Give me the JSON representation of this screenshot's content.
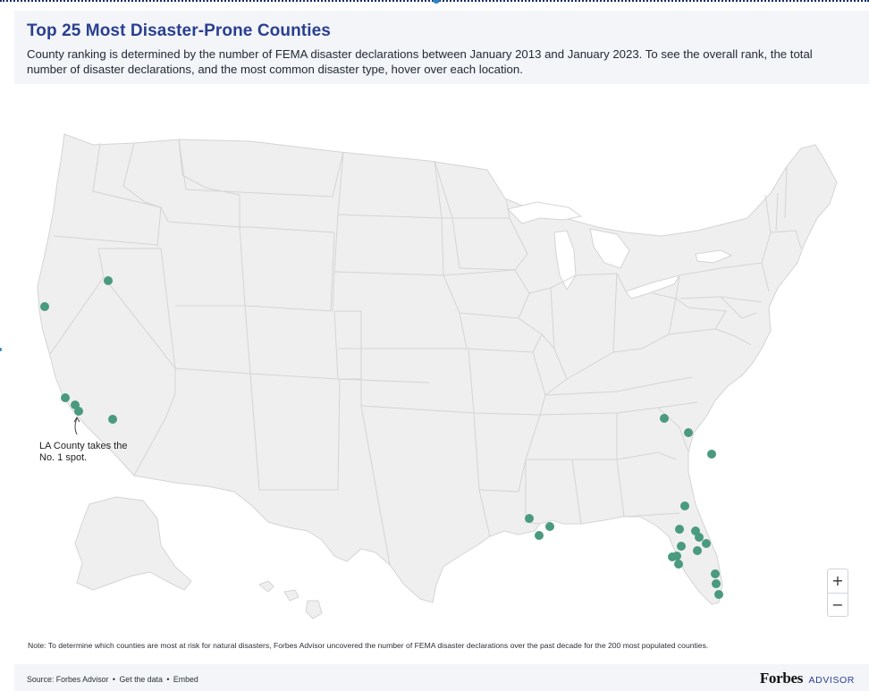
{
  "header": {
    "title": "Top 25 Most Disaster-Prone Counties",
    "subtitle": "County ranking is determined by the number of FEMA disaster declarations between January 2013 and January 2023. To see the overall rank, the total number of disaster declarations, and the most common disaster type, hover over each location."
  },
  "map": {
    "annotation": {
      "line1": "LA County takes the",
      "line2": "No. 1 spot."
    },
    "marker_color": "#4a9a80",
    "land_color": "#efefef"
  },
  "zoom": {
    "in_label": "+",
    "out_label": "−"
  },
  "note": "Note: To determine which counties are most at risk for natural disasters, Forbes Advisor uncovered the number of FEMA disaster declarations over the past decade for the 200 most populated counties.",
  "footer": {
    "source_label": "Source:",
    "source_name": "Forbes Advisor",
    "get_data": "Get the data",
    "embed": "Embed",
    "separator": "•",
    "brand_name": "Forbes",
    "brand_sub": "ADVISOR"
  }
}
